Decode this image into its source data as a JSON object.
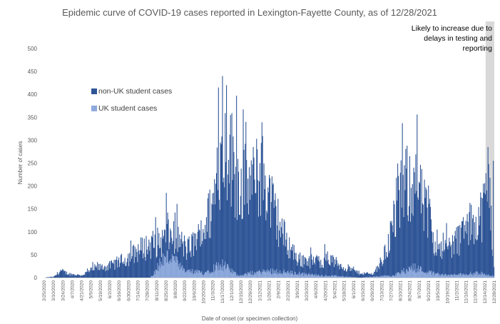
{
  "chart_data": {
    "type": "bar",
    "stacked": true,
    "title": "Epidemic curve of COVID-19 cases reported in Lexington-Fayette County, as of 12/28/2021",
    "xlabel": "Date of onset (or specimen collection)",
    "ylabel": "Number of cases",
    "ylim": [
      0,
      500
    ],
    "yticks": [
      "0",
      "50",
      "100",
      "150",
      "200",
      "250",
      "300",
      "350",
      "400",
      "450",
      "500"
    ],
    "x_start": "2020-02-25",
    "x_end": "2021-12-28",
    "xtick_labels": [
      "2/25/2020",
      "3/10/2020",
      "3/24/2020",
      "4/7/2020",
      "4/21/2020",
      "5/5/2020",
      "5/19/2020",
      "6/2/2020",
      "6/16/2020",
      "6/30/2020",
      "7/14/2020",
      "7/28/2020",
      "8/11/2020",
      "8/25/2020",
      "9/8/2020",
      "9/22/2020",
      "10/6/2020",
      "10/20/2020",
      "11/3/2020",
      "11/17/2020",
      "12/1/2020",
      "12/15/2020",
      "12/29/2020",
      "1/12/2021",
      "1/26/2021",
      "2/9/2021",
      "2/23/2021",
      "3/9/2021",
      "3/23/2021",
      "4/6/2021",
      "4/20/2021",
      "5/4/2021",
      "5/18/2021",
      "6/1/2021",
      "6/15/2021",
      "6/29/2021",
      "7/13/2021",
      "7/27/2021",
      "8/10/2021",
      "8/24/2021",
      "9/7/2021",
      "9/21/2021",
      "10/5/2021",
      "10/19/2021",
      "11/2/2021",
      "11/16/2021",
      "11/30/2021",
      "12/14/2021",
      "12/28/2021"
    ],
    "series": [
      {
        "name": "non-UK student cases",
        "color": "#2f5597",
        "anchors": [
          [
            "2020-02-25",
            0
          ],
          [
            "2020-03-10",
            2
          ],
          [
            "2020-03-20",
            15
          ],
          [
            "2020-04-01",
            8
          ],
          [
            "2020-04-20",
            5
          ],
          [
            "2020-05-10",
            20
          ],
          [
            "2020-06-01",
            25
          ],
          [
            "2020-06-25",
            40
          ],
          [
            "2020-07-15",
            60
          ],
          [
            "2020-07-30",
            70
          ],
          [
            "2020-08-20",
            80
          ],
          [
            "2020-09-05",
            95
          ],
          [
            "2020-09-25",
            60
          ],
          [
            "2020-10-15",
            90
          ],
          [
            "2020-11-01",
            150
          ],
          [
            "2020-11-15",
            250
          ],
          [
            "2020-11-25",
            290
          ],
          [
            "2020-12-10",
            210
          ],
          [
            "2021-01-01",
            200
          ],
          [
            "2021-01-15",
            230
          ],
          [
            "2021-02-01",
            150
          ],
          [
            "2021-02-20",
            80
          ],
          [
            "2021-03-10",
            40
          ],
          [
            "2021-04-05",
            35
          ],
          [
            "2021-04-25",
            40
          ],
          [
            "2021-05-15",
            25
          ],
          [
            "2021-06-10",
            10
          ],
          [
            "2021-06-30",
            8
          ],
          [
            "2021-07-15",
            40
          ],
          [
            "2021-08-01",
            120
          ],
          [
            "2021-08-15",
            200
          ],
          [
            "2021-09-01",
            210
          ],
          [
            "2021-09-15",
            150
          ],
          [
            "2021-10-01",
            80
          ],
          [
            "2021-10-20",
            65
          ],
          [
            "2021-11-10",
            90
          ],
          [
            "2021-11-25",
            120
          ],
          [
            "2021-12-10",
            140
          ],
          [
            "2021-12-20",
            200
          ],
          [
            "2021-12-28",
            30
          ]
        ]
      },
      {
        "name": "UK student cases",
        "color": "#8faadc",
        "anchors": [
          [
            "2020-02-25",
            0
          ],
          [
            "2020-08-01",
            0
          ],
          [
            "2020-08-20",
            40
          ],
          [
            "2020-09-01",
            45
          ],
          [
            "2020-09-20",
            15
          ],
          [
            "2020-10-20",
            10
          ],
          [
            "2020-11-15",
            30
          ],
          [
            "2020-12-10",
            5
          ],
          [
            "2021-01-10",
            12
          ],
          [
            "2021-02-01",
            15
          ],
          [
            "2021-03-01",
            10
          ],
          [
            "2021-04-10",
            5
          ],
          [
            "2021-05-10",
            3
          ],
          [
            "2021-06-10",
            0
          ],
          [
            "2021-08-01",
            5
          ],
          [
            "2021-08-20",
            18
          ],
          [
            "2021-09-01",
            22
          ],
          [
            "2021-09-20",
            12
          ],
          [
            "2021-10-20",
            5
          ],
          [
            "2021-12-05",
            10
          ],
          [
            "2021-12-28",
            3
          ]
        ]
      }
    ],
    "peaks": [
      [
        "2020-08-25",
        185
      ],
      [
        "2020-09-07",
        142
      ],
      [
        "2020-11-11",
        415
      ],
      [
        "2020-11-17",
        440
      ],
      [
        "2020-11-23",
        420
      ],
      [
        "2020-12-08",
        397
      ],
      [
        "2020-12-22",
        340
      ],
      [
        "2021-01-08",
        280
      ],
      [
        "2021-08-13",
        337
      ],
      [
        "2021-12-22",
        218
      ],
      [
        "2021-12-27",
        255
      ]
    ],
    "legend": {
      "placement": "upper-left"
    },
    "grid": false,
    "annotation": {
      "lines": [
        "Likely to increase due to",
        "delays in testing and",
        "reporting"
      ],
      "shade_start": "2021-12-15",
      "shade_end": "2021-12-28",
      "shade_color": "#d9d9d9"
    }
  }
}
